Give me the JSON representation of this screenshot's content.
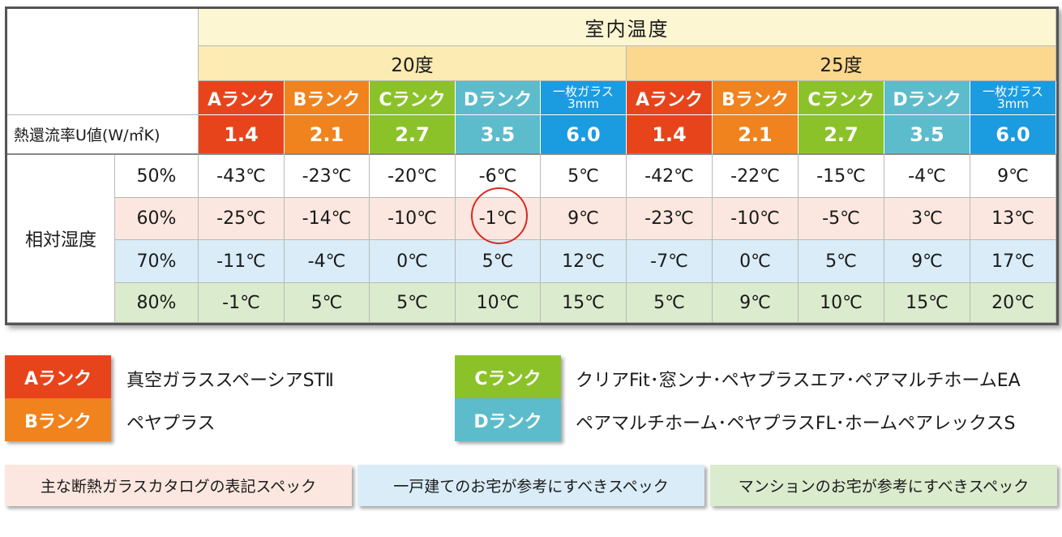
{
  "header": {
    "title": "室内温度",
    "temp_20": "20度",
    "temp_25": "25度"
  },
  "ranks": [
    {
      "label": "Aランク",
      "color": "#e8441c"
    },
    {
      "label": "Bランク",
      "color": "#f0831d"
    },
    {
      "label": "Cランク",
      "color": "#8cc229"
    },
    {
      "label": "Dランク",
      "color": "#5cbccc"
    },
    {
      "label": "一枚ガラス\n3mm",
      "color": "#1b9be0"
    }
  ],
  "u_row": {
    "label": "熱還流率U値(W/㎡K)",
    "values": [
      "1.4",
      "2.1",
      "2.7",
      "3.5",
      "6.0",
      "1.4",
      "2.1",
      "2.7",
      "3.5",
      "6.0"
    ]
  },
  "humidity_label": "相対湿度",
  "rows": [
    {
      "humidity": "50%",
      "bg": "#ffffff",
      "values": [
        "-43℃",
        "-23℃",
        "-20℃",
        "-6℃",
        "5℃",
        "-42℃",
        "-22℃",
        "-15℃",
        "-4℃",
        "9℃"
      ]
    },
    {
      "humidity": "60%",
      "bg": "#fbe7df",
      "values": [
        "-25℃",
        "-14℃",
        "-10℃",
        "-1℃",
        "9℃",
        "-23℃",
        "-10℃",
        "-5℃",
        "3℃",
        "13℃"
      ]
    },
    {
      "humidity": "70%",
      "bg": "#d9ecf7",
      "values": [
        "-11℃",
        "-4℃",
        "0℃",
        "5℃",
        "12℃",
        "-7℃",
        "0℃",
        "5℃",
        "9℃",
        "17℃"
      ]
    },
    {
      "humidity": "80%",
      "bg": "#dbebcd",
      "values": [
        "-1℃",
        "5℃",
        "5℃",
        "10℃",
        "15℃",
        "5℃",
        "9℃",
        "10℃",
        "15℃",
        "20℃"
      ]
    }
  ],
  "legend": [
    {
      "rank": "Aランク",
      "color": "#e8441c",
      "text": "真空ガラススペーシアSTⅡ"
    },
    {
      "rank": "Bランク",
      "color": "#f0831d",
      "text": "ペヤプラス"
    },
    {
      "rank": "Cランク",
      "color": "#8cc229",
      "text": "クリアFit･窓ンナ･ペヤプラスエア･ペアマルチホームEA"
    },
    {
      "rank": "Dランク",
      "color": "#5cbccc",
      "text": "ペアマルチホーム･ペヤプラスFL･ホームペアレックスS"
    }
  ],
  "notes": [
    {
      "text": "主な断熱ガラスカタログの表記スペック",
      "bg": "#fbe7df"
    },
    {
      "text": "一戸建てのお宅が参考にすべきスペック",
      "bg": "#d9ecf7"
    },
    {
      "text": "マンションのお宅が参考にすべきスペック",
      "bg": "#dbebcd"
    }
  ],
  "colors": {
    "title_bg": "#fdf6d3",
    "temp20_bg": "#fcebb2",
    "temp25_bg": "#fbd88d",
    "circle": "#d92a1e"
  }
}
